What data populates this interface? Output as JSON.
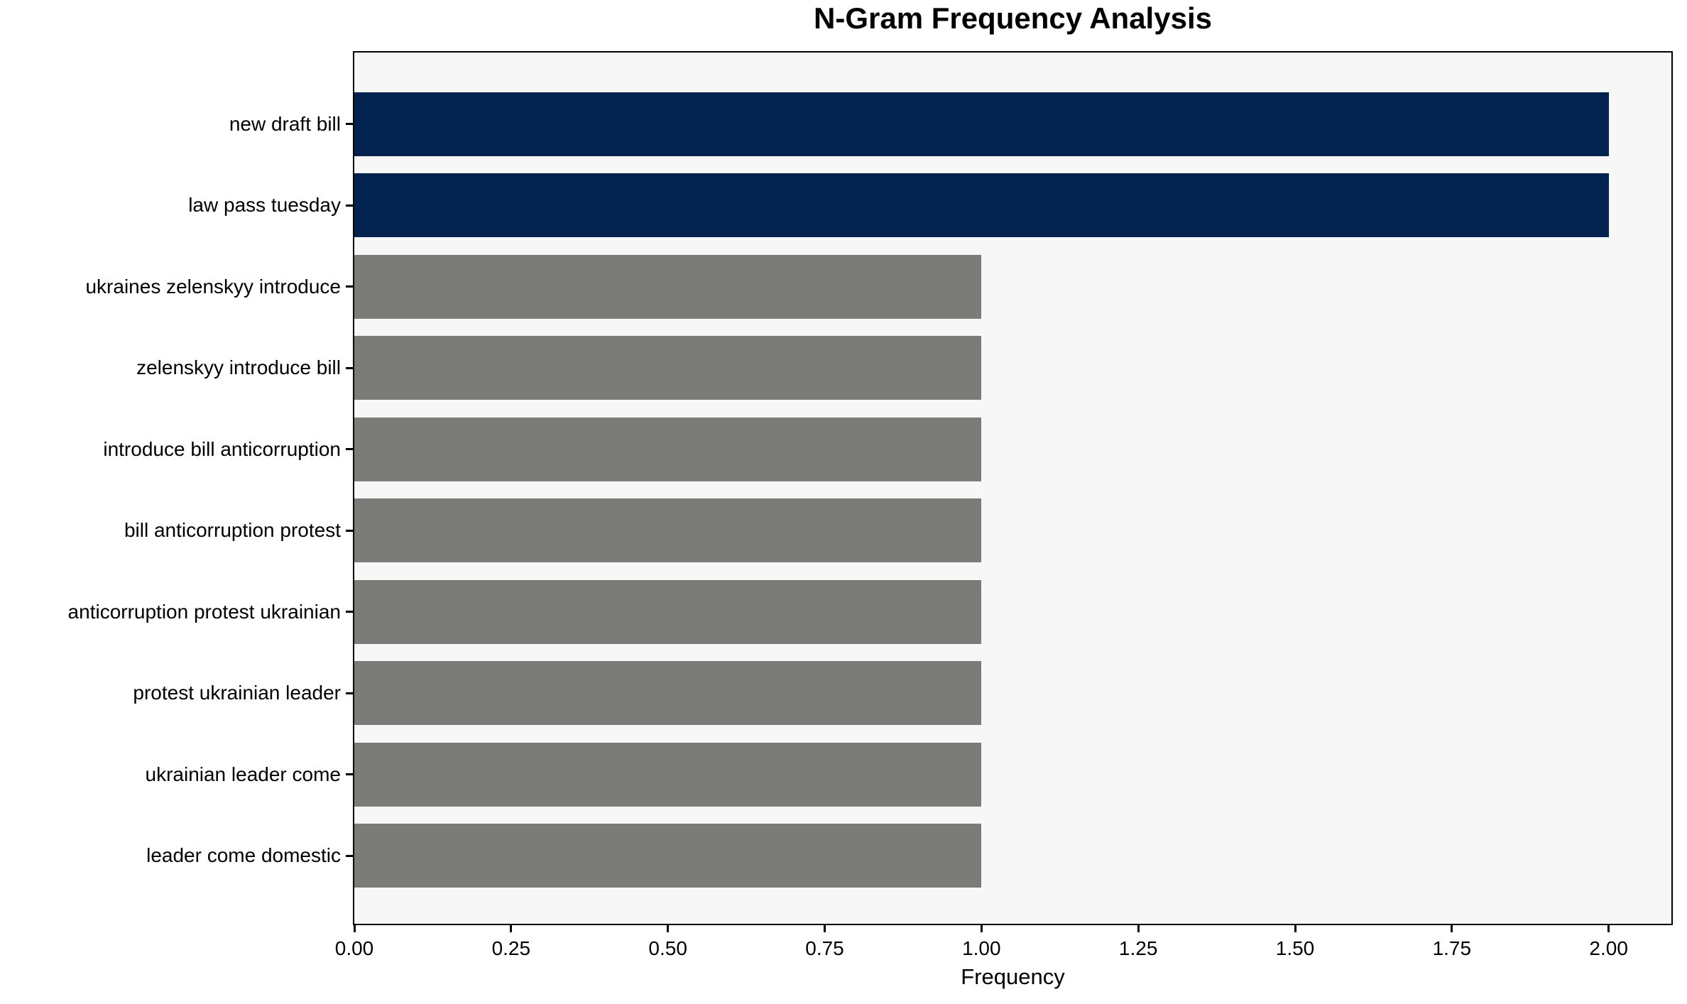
{
  "chart_data": {
    "type": "bar",
    "orientation": "horizontal",
    "title": "N-Gram Frequency Analysis",
    "xlabel": "Frequency",
    "ylabel": "",
    "categories": [
      "new draft bill",
      "law pass tuesday",
      "ukraines zelenskyy introduce",
      "zelenskyy introduce bill",
      "introduce bill anticorruption",
      "bill anticorruption protest",
      "anticorruption protest ukrainian",
      "protest ukrainian leader",
      "ukrainian leader come",
      "leader come domestic"
    ],
    "values": [
      2,
      2,
      1,
      1,
      1,
      1,
      1,
      1,
      1,
      1
    ],
    "bar_colors": [
      "#02234d",
      "#02234d",
      "#7b7b78",
      "#7b7b78",
      "#7b7b78",
      "#7b7b78",
      "#7b7b78",
      "#7b7b78",
      "#7b7b78",
      "#7b7b78"
    ],
    "x_ticks": [
      "0.00",
      "0.25",
      "0.50",
      "0.75",
      "1.00",
      "1.25",
      "1.50",
      "1.75",
      "2.00"
    ],
    "x_tick_values": [
      0,
      0.25,
      0.5,
      0.75,
      1.0,
      1.25,
      1.5,
      1.75,
      2.0
    ],
    "xlim": [
      0,
      2.1
    ],
    "grid": false,
    "legend": null,
    "colors": {
      "highlight_bar": "#02234d",
      "default_bar": "#7b7b78",
      "plot_background": "#f7f7f7",
      "figure_background": "#ffffff",
      "axis": "#000000",
      "text": "#000000"
    }
  }
}
